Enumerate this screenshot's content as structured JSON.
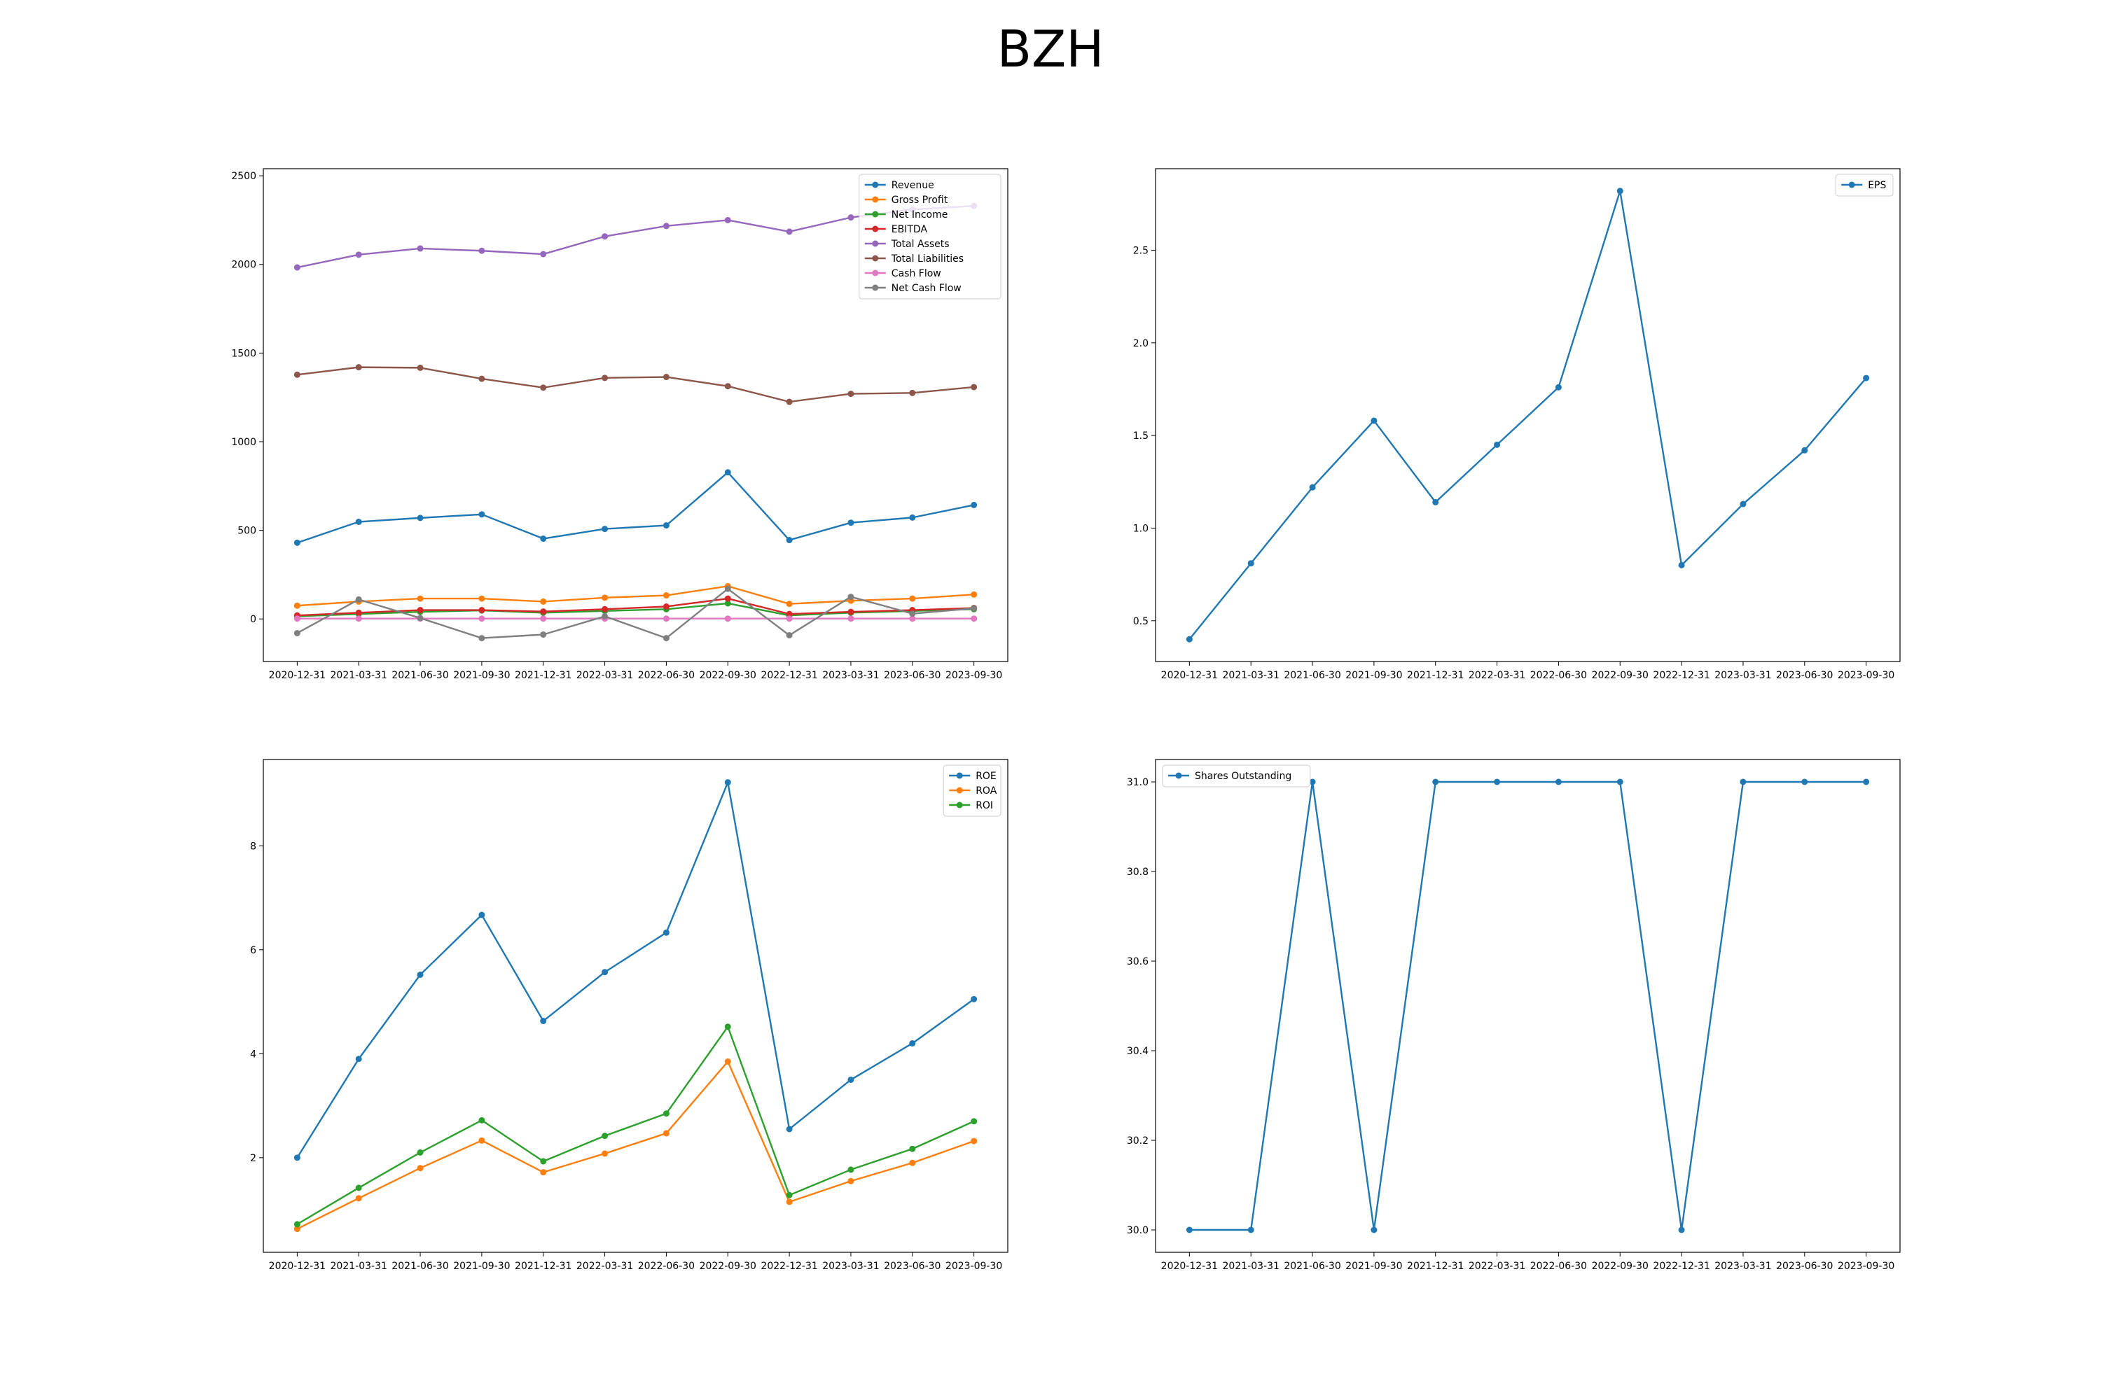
{
  "figure": {
    "title": "BZH"
  },
  "chart_data": [
    {
      "type": "line",
      "title": "",
      "xlabel": "",
      "ylabel": "",
      "x": [
        "2020-12-31",
        "2021-03-31",
        "2021-06-30",
        "2021-09-30",
        "2021-12-31",
        "2022-03-31",
        "2022-06-30",
        "2022-09-30",
        "2022-12-31",
        "2023-03-31",
        "2023-06-30",
        "2023-09-30"
      ],
      "ylim": [
        -240,
        2540
      ],
      "yticks": [
        0,
        500,
        1000,
        1500,
        2000,
        2500
      ],
      "legend": "top-right",
      "grid": false,
      "series": [
        {
          "name": "Revenue",
          "color": "#1f77b4",
          "values": [
            430,
            548,
            570,
            590,
            453,
            508,
            528,
            827,
            445,
            543,
            572,
            643
          ]
        },
        {
          "name": "Gross Profit",
          "color": "#ff7f0e",
          "values": [
            75,
            98,
            115,
            115,
            98,
            120,
            133,
            185,
            85,
            103,
            115,
            138
          ]
        },
        {
          "name": "Net Income",
          "color": "#2ca02c",
          "values": [
            15,
            28,
            40,
            48,
            35,
            45,
            55,
            88,
            20,
            35,
            45,
            55
          ]
        },
        {
          "name": "EBITDA",
          "color": "#d62728",
          "values": [
            20,
            35,
            50,
            50,
            42,
            55,
            70,
            115,
            28,
            40,
            50,
            62
          ]
        },
        {
          "name": "Total Assets",
          "color": "#9467bd",
          "values": [
            1983,
            2055,
            2090,
            2077,
            2058,
            2158,
            2217,
            2250,
            2185,
            2265,
            2310,
            2330
          ]
        },
        {
          "name": "Total Liabilities",
          "color": "#8c564b",
          "values": [
            1378,
            1420,
            1417,
            1355,
            1305,
            1360,
            1365,
            1313,
            1225,
            1270,
            1275,
            1308
          ]
        },
        {
          "name": "Cash Flow",
          "color": "#e377c2",
          "values": [
            2,
            2,
            2,
            2,
            2,
            2,
            2,
            2,
            2,
            2,
            2,
            2
          ]
        },
        {
          "name": "Net Cash Flow",
          "color": "#7f7f7f",
          "values": [
            -80,
            110,
            5,
            -108,
            -88,
            15,
            -108,
            170,
            -92,
            125,
            30,
            60
          ]
        }
      ]
    },
    {
      "type": "line",
      "title": "",
      "xlabel": "",
      "ylabel": "",
      "x": [
        "2020-12-31",
        "2021-03-31",
        "2021-06-30",
        "2021-09-30",
        "2021-12-31",
        "2022-03-31",
        "2022-06-30",
        "2022-09-30",
        "2022-12-31",
        "2023-03-31",
        "2023-06-30",
        "2023-09-30"
      ],
      "ylim": [
        0.28,
        2.94
      ],
      "yticks": [
        0.5,
        1.0,
        1.5,
        2.0,
        2.5
      ],
      "legend": "top-right",
      "grid": false,
      "series": [
        {
          "name": "EPS",
          "color": "#1f77b4",
          "values": [
            0.4,
            0.81,
            1.22,
            1.58,
            1.14,
            1.45,
            1.76,
            2.82,
            0.8,
            1.13,
            1.42,
            1.81
          ]
        }
      ]
    },
    {
      "type": "line",
      "title": "",
      "xlabel": "",
      "ylabel": "",
      "x": [
        "2020-12-31",
        "2021-03-31",
        "2021-06-30",
        "2021-09-30",
        "2021-12-31",
        "2022-03-31",
        "2022-06-30",
        "2022-09-30",
        "2022-12-31",
        "2023-03-31",
        "2023-06-30",
        "2023-09-30"
      ],
      "ylim": [
        0.18,
        9.66
      ],
      "yticks": [
        2,
        4,
        6,
        8
      ],
      "legend": "top-right",
      "grid": false,
      "series": [
        {
          "name": "ROE",
          "color": "#1f77b4",
          "values": [
            2.0,
            3.9,
            5.52,
            6.67,
            4.63,
            5.57,
            6.33,
            9.22,
            2.55,
            3.5,
            4.2,
            5.05
          ]
        },
        {
          "name": "ROA",
          "color": "#ff7f0e",
          "values": [
            0.63,
            1.22,
            1.8,
            2.33,
            1.72,
            2.08,
            2.47,
            3.85,
            1.15,
            1.55,
            1.9,
            2.32
          ]
        },
        {
          "name": "ROI",
          "color": "#2ca02c",
          "values": [
            0.72,
            1.42,
            2.1,
            2.72,
            1.93,
            2.42,
            2.85,
            4.52,
            1.28,
            1.77,
            2.17,
            2.7
          ]
        }
      ]
    },
    {
      "type": "line",
      "title": "",
      "xlabel": "",
      "ylabel": "",
      "x": [
        "2020-12-31",
        "2021-03-31",
        "2021-06-30",
        "2021-09-30",
        "2021-12-31",
        "2022-03-31",
        "2022-06-30",
        "2022-09-30",
        "2022-12-31",
        "2023-03-31",
        "2023-06-30",
        "2023-09-30"
      ],
      "ylim": [
        29.95,
        31.05
      ],
      "yticks": [
        30.0,
        30.2,
        30.4,
        30.6,
        30.8,
        31.0
      ],
      "legend": "top-left",
      "grid": false,
      "series": [
        {
          "name": "Shares Outstanding",
          "color": "#1f77b4",
          "values": [
            30.0,
            30.0,
            31.0,
            30.0,
            31.0,
            31.0,
            31.0,
            31.0,
            30.0,
            31.0,
            31.0,
            31.0
          ]
        }
      ]
    }
  ]
}
